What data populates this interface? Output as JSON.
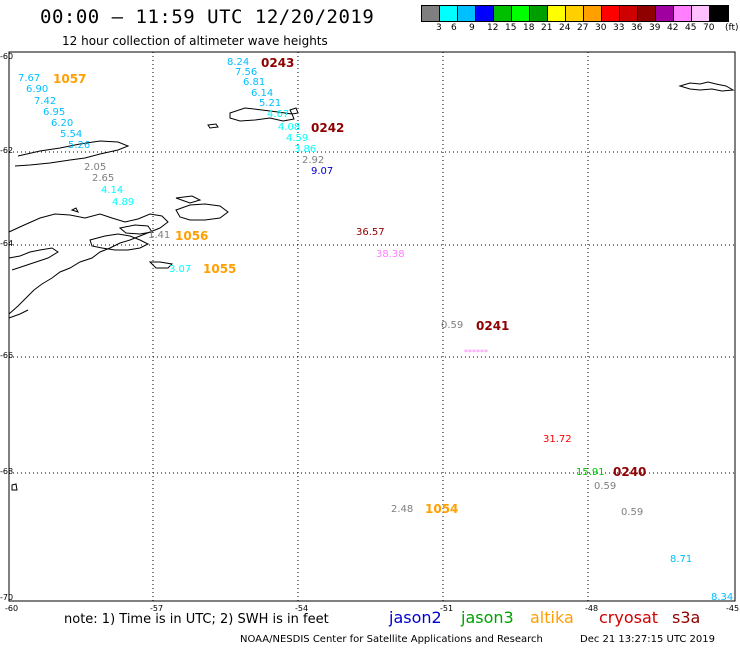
{
  "header": {
    "title": "00:00 – 11:59 UTC 12/20/2019",
    "subtitle": "12 hour collection of altimeter wave heights"
  },
  "legend": {
    "colors": [
      "#7f7f7f",
      "#00ffff",
      "#00bfff",
      "#0000ff",
      "#00bf00",
      "#00ff00",
      "#009f00",
      "#ffff00",
      "#ffcf00",
      "#ff9f00",
      "#ff0000",
      "#cf0000",
      "#8f0000",
      "#9f009f",
      "#ff7fff",
      "#ffc0ff",
      "#000000"
    ],
    "labels": [
      "3",
      "6",
      "9",
      "12",
      "15",
      "18",
      "21",
      "24",
      "27",
      "30",
      "33",
      "36",
      "39",
      "42",
      "45",
      "70",
      "(ft)"
    ]
  },
  "map": {
    "lat_labels": [
      "-60",
      "-62",
      "-64",
      "-66",
      "-68",
      "-70"
    ],
    "lon_labels": [
      "-60",
      "-57",
      "-54",
      "-51",
      "-48",
      "-45"
    ]
  },
  "points": [
    {
      "text": "8.24",
      "color": "#00bfff"
    },
    {
      "text": "7.56",
      "color": "#00bfff"
    },
    {
      "text": "6.81",
      "color": "#00bfff"
    },
    {
      "text": "6.14",
      "color": "#00bfff"
    },
    {
      "text": "5.21",
      "color": "#00bfff"
    },
    {
      "text": "4.67",
      "color": "#00ffff"
    },
    {
      "text": "4.08",
      "color": "#00ffff"
    },
    {
      "text": "4.59",
      "color": "#00ffff"
    },
    {
      "text": "3.86",
      "color": "#00ffff"
    },
    {
      "text": "2.92",
      "color": "#7f7f7f"
    },
    {
      "text": "9.07",
      "color": "#0000cf"
    },
    {
      "text": "7.67",
      "color": "#00bfff"
    },
    {
      "text": "6.90",
      "color": "#00bfff"
    },
    {
      "text": "7.42",
      "color": "#00bfff"
    },
    {
      "text": "6.95",
      "color": "#00bfff"
    },
    {
      "text": "6.20",
      "color": "#00bfff"
    },
    {
      "text": "5.54",
      "color": "#00bfff"
    },
    {
      "text": "5.26",
      "color": "#00bfff"
    },
    {
      "text": "2.05",
      "color": "#7f7f7f"
    },
    {
      "text": "2.65",
      "color": "#7f7f7f"
    },
    {
      "text": "4.14",
      "color": "#00ffff"
    },
    {
      "text": "4.89",
      "color": "#00ffff"
    },
    {
      "text": "1.41",
      "color": "#7f7f7f"
    },
    {
      "text": "3.07",
      "color": "#00ffff"
    },
    {
      "text": "36.57",
      "color": "#8f0000"
    },
    {
      "text": "38.38",
      "color": "#ff7fff"
    },
    {
      "text": "0.59",
      "color": "#7f7f7f"
    },
    {
      "text": "******",
      "color": "#ff7fff"
    },
    {
      "text": "31.72",
      "color": "#ff0000"
    },
    {
      "text": "15.91",
      "color": "#00bf00"
    },
    {
      "text": "0.59",
      "color": "#7f7f7f"
    },
    {
      "text": "0.59",
      "color": "#7f7f7f"
    },
    {
      "text": "2.48",
      "color": "#7f7f7f"
    },
    {
      "text": "8.71",
      "color": "#00bfff"
    },
    {
      "text": "8.34",
      "color": "#00bfff"
    }
  ],
  "cycles": [
    {
      "text": "0243",
      "color": "#8f0000"
    },
    {
      "text": "0242",
      "color": "#8f0000"
    },
    {
      "text": "0241",
      "color": "#8f0000"
    },
    {
      "text": "0240",
      "color": "#8f0000"
    },
    {
      "text": "1057",
      "color": "#ff9f00"
    },
    {
      "text": "1056",
      "color": "#ff9f00"
    },
    {
      "text": "1055",
      "color": "#ff9f00"
    },
    {
      "text": "1054",
      "color": "#ff9f00"
    }
  ],
  "footer": {
    "note": "note:  1) Time is in UTC;  2) SWH is in feet",
    "satellites": [
      {
        "name": "jason2",
        "color": "#0000cf"
      },
      {
        "name": "jason3",
        "color": "#00a000"
      },
      {
        "name": "altika",
        "color": "#ff9f00"
      },
      {
        "name": "cryosat",
        "color": "#cf0000"
      },
      {
        "name": "s3a",
        "color": "#8f0000"
      }
    ],
    "credit": "NOAA/NESDIS Center for Satellite Applications and Research",
    "timestamp": "Dec 21 13:27:15 UTC 2019"
  }
}
